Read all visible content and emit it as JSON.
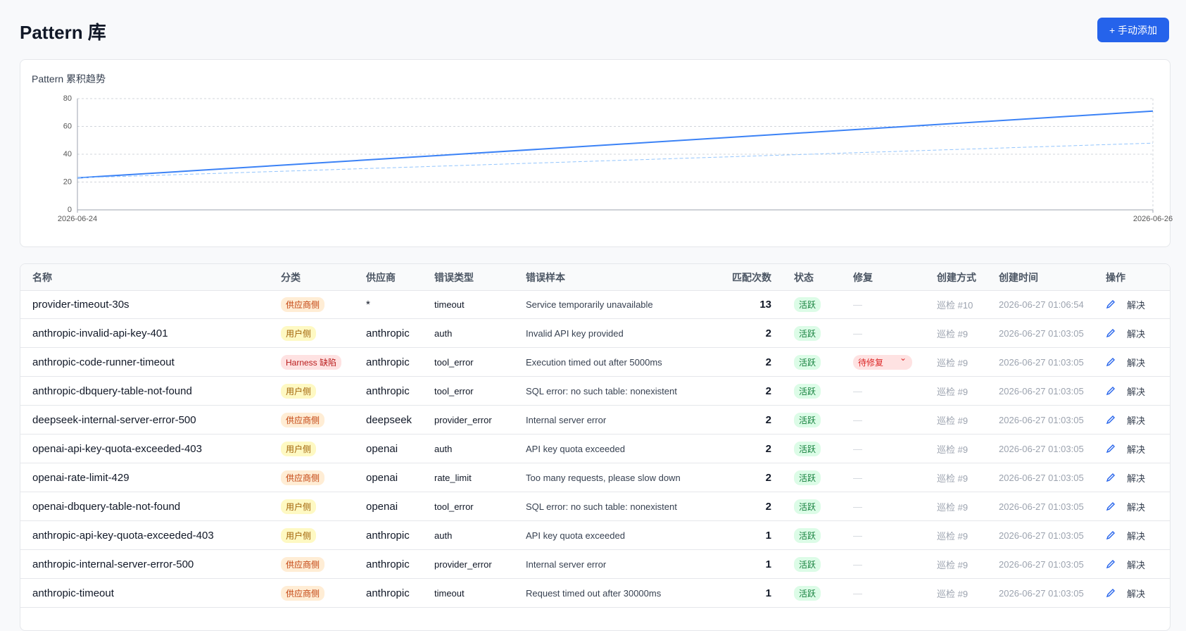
{
  "header": {
    "title": "Pattern 库",
    "button": "+ 手动添加"
  },
  "chart_data": {
    "type": "line",
    "title": "Pattern 累积趋势",
    "x": [
      "2026-06-24",
      "2026-06-26"
    ],
    "series": [
      {
        "color": "#3b82f6",
        "values": [
          23,
          71
        ]
      },
      {
        "color": "#93c5fd",
        "dashed": true,
        "values": [
          23,
          48
        ]
      }
    ],
    "ylim": [
      0,
      80
    ],
    "yticks": [
      0,
      20,
      40,
      60,
      80
    ],
    "grid": true
  },
  "table": {
    "headers": [
      "名称",
      "分类",
      "供应商",
      "错误类型",
      "错误样本",
      "匹配次数",
      "状态",
      "修复",
      "创建方式",
      "创建时间",
      "操作"
    ],
    "rows": [
      [
        "provider-timeout-30s",
        "供应商侧",
        "*",
        "timeout",
        "Service temporarily unavailable",
        13,
        "活跃",
        "—",
        "巡检 #10",
        "2026-06-27 01:06:54",
        "解决"
      ],
      [
        "anthropic-invalid-api-key-401",
        "用户侧",
        "anthropic",
        "auth",
        "Invalid API key provided",
        2,
        "活跃",
        "—",
        "巡检 #9",
        "2026-06-27 01:03:05",
        "解决"
      ],
      [
        "anthropic-code-runner-timeout",
        "Harness 缺陷",
        "anthropic",
        "tool_error",
        "Execution timed out after 5000ms",
        2,
        "活跃",
        "待修复",
        "巡检 #9",
        "2026-06-27 01:03:05",
        "解决"
      ],
      [
        "anthropic-dbquery-table-not-found",
        "用户侧",
        "anthropic",
        "tool_error",
        "SQL error: no such table: nonexistent",
        2,
        "活跃",
        "—",
        "巡检 #9",
        "2026-06-27 01:03:05",
        "解决"
      ],
      [
        "deepseek-internal-server-error-500",
        "供应商侧",
        "deepseek",
        "provider_error",
        "Internal server error",
        2,
        "活跃",
        "—",
        "巡检 #9",
        "2026-06-27 01:03:05",
        "解决"
      ],
      [
        "openai-api-key-quota-exceeded-403",
        "用户侧",
        "openai",
        "auth",
        "API key quota exceeded",
        2,
        "活跃",
        "—",
        "巡检 #9",
        "2026-06-27 01:03:05",
        "解决"
      ],
      [
        "openai-rate-limit-429",
        "供应商侧",
        "openai",
        "rate_limit",
        "Too many requests, please slow down",
        2,
        "活跃",
        "—",
        "巡检 #9",
        "2026-06-27 01:03:05",
        "解决"
      ],
      [
        "openai-dbquery-table-not-found",
        "用户侧",
        "openai",
        "tool_error",
        "SQL error: no such table: nonexistent",
        2,
        "活跃",
        "—",
        "巡检 #9",
        "2026-06-27 01:03:05",
        "解决"
      ],
      [
        "anthropic-api-key-quota-exceeded-403",
        "用户侧",
        "anthropic",
        "auth",
        "API key quota exceeded",
        1,
        "活跃",
        "—",
        "巡检 #9",
        "2026-06-27 01:03:05",
        "解决"
      ],
      [
        "anthropic-internal-server-error-500",
        "供应商侧",
        "anthropic",
        "provider_error",
        "Internal server error",
        1,
        "活跃",
        "—",
        "巡检 #9",
        "2026-06-27 01:03:05",
        "解决"
      ],
      [
        "anthropic-timeout",
        "供应商侧",
        "anthropic",
        "timeout",
        "Request timed out after 30000ms",
        1,
        "活跃",
        "—",
        "巡检 #9",
        "2026-06-27 01:03:05",
        "解决"
      ]
    ]
  }
}
